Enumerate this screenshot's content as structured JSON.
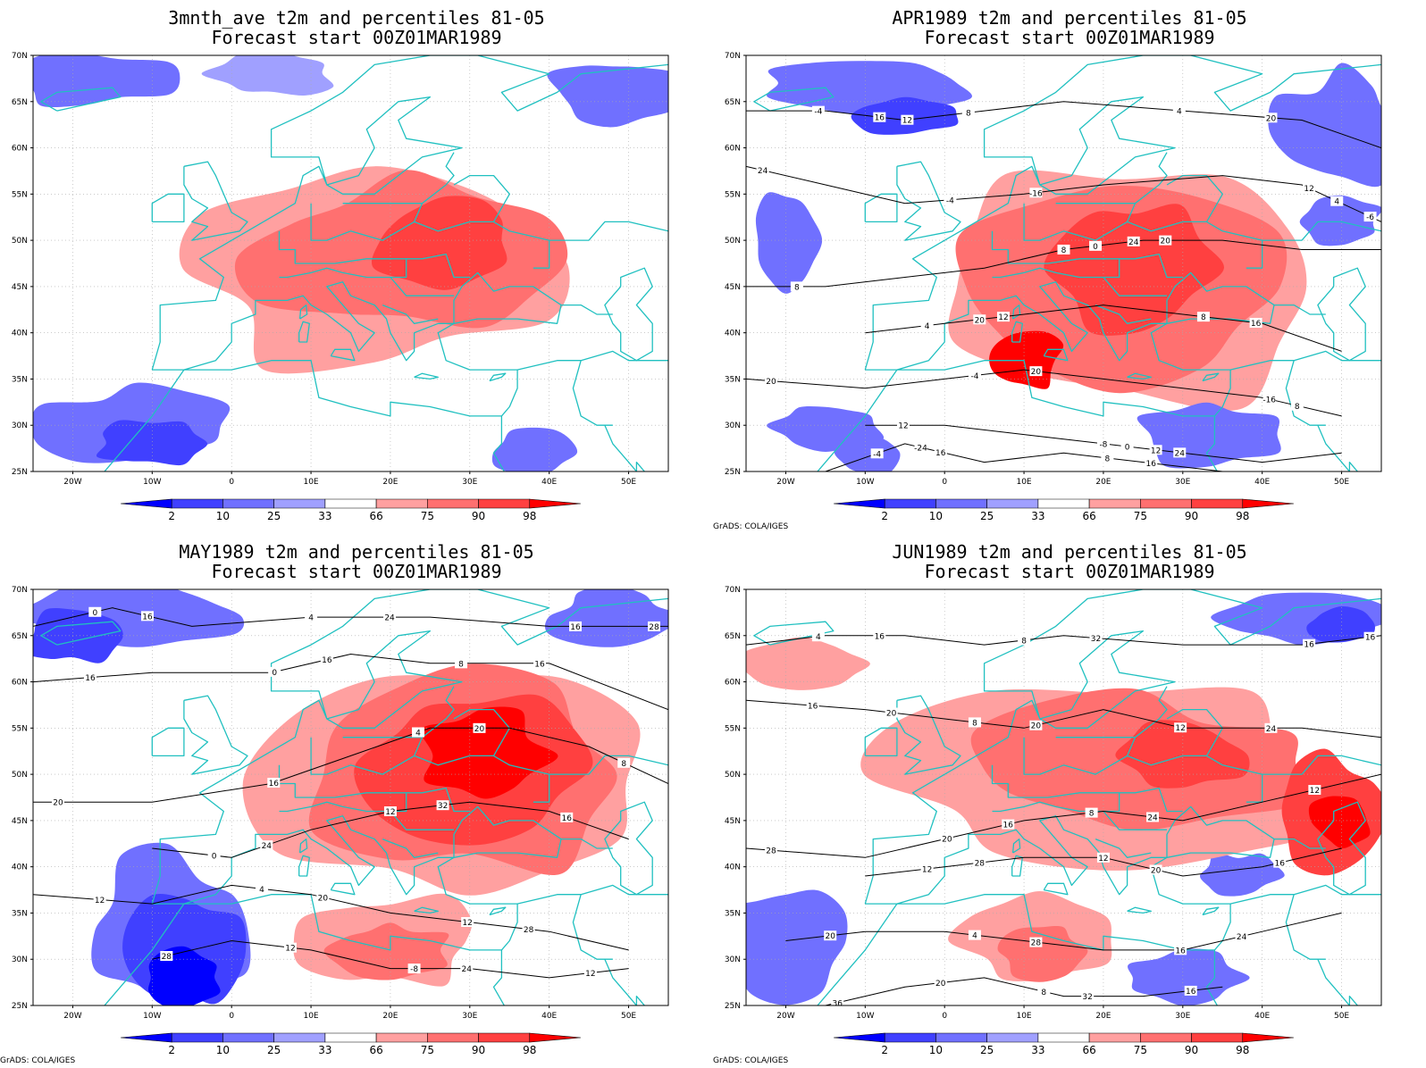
{
  "panels": [
    {
      "title_line1": "3mnth_ave t2m and percentiles 81-05",
      "title_line2": "Forecast start 00Z01MAR1989",
      "show_credit": false,
      "contour_labels": []
    },
    {
      "title_line1": "APR1989 t2m and percentiles 81-05",
      "title_line2": "Forecast start 00Z01MAR1989",
      "show_credit": true,
      "contour_labels": [
        "-4",
        "-4",
        "0",
        "4",
        "-4",
        "0",
        "-4",
        "4",
        "4",
        "8",
        "8",
        "8",
        "-8",
        "8",
        "12",
        "12",
        "8",
        "12",
        "-16",
        "12",
        "16",
        "16",
        "-16",
        "20",
        "20",
        "20",
        "24",
        "-24",
        "20",
        "24",
        "24",
        "16",
        "20",
        "12",
        "16",
        "8",
        "-6"
      ]
    },
    {
      "title_line1": "MAY1989 t2m and percentiles 81-05",
      "title_line2": "Forecast start 00Z01MAR1989",
      "show_credit": true,
      "contour_labels": [
        "0",
        "0",
        "4",
        "0",
        "4",
        "-8",
        "4",
        "8",
        "8",
        "12",
        "12",
        "12",
        "16",
        "16",
        "16",
        "16",
        "12",
        "12",
        "16",
        "16",
        "20",
        "24",
        "20",
        "24",
        "24",
        "16",
        "20",
        "32",
        "28",
        "28",
        "28"
      ]
    },
    {
      "title_line1": "JUN1989 t2m and percentiles 81-05",
      "title_line2": "Forecast start 00Z01MAR1989",
      "show_credit": true,
      "contour_labels": [
        "4",
        "8",
        "8",
        "12",
        "4",
        "8",
        "8",
        "12",
        "12",
        "12",
        "16",
        "16",
        "16",
        "16",
        "20",
        "16",
        "20",
        "20",
        "16",
        "20",
        "24",
        "28",
        "28",
        "32",
        "32",
        "24",
        "28",
        "20",
        "24",
        "36",
        "16",
        "20",
        "16"
      ]
    }
  ],
  "axes": {
    "lat_labels": [
      "70N",
      "65N",
      "60N",
      "55N",
      "50N",
      "45N",
      "40N",
      "35N",
      "30N",
      "25N"
    ],
    "lon_labels": [
      "20W",
      "10W",
      "0",
      "10E",
      "20E",
      "30E",
      "40E",
      "50E"
    ],
    "lon_values": [
      -20,
      -10,
      0,
      10,
      20,
      30,
      40,
      50
    ],
    "lat_values": [
      70,
      65,
      60,
      55,
      50,
      45,
      40,
      35,
      30,
      25
    ],
    "lon_range": [
      -25,
      55
    ],
    "lat_range": [
      25,
      70
    ]
  },
  "colorbar": {
    "labels": [
      "2",
      "10",
      "25",
      "33",
      "66",
      "75",
      "90",
      "98"
    ],
    "colors": [
      "#0000ff",
      "#4040ff",
      "#7070ff",
      "#a0a0ff",
      "#ffffff",
      "#ffa0a0",
      "#ff7070",
      "#ff4040",
      "#ff0000"
    ]
  },
  "credit": "GrADS: COLA/IGES",
  "colors": {
    "coast": "#20c0c0",
    "contour": "#000000",
    "grid": "#aaaaaa"
  }
}
